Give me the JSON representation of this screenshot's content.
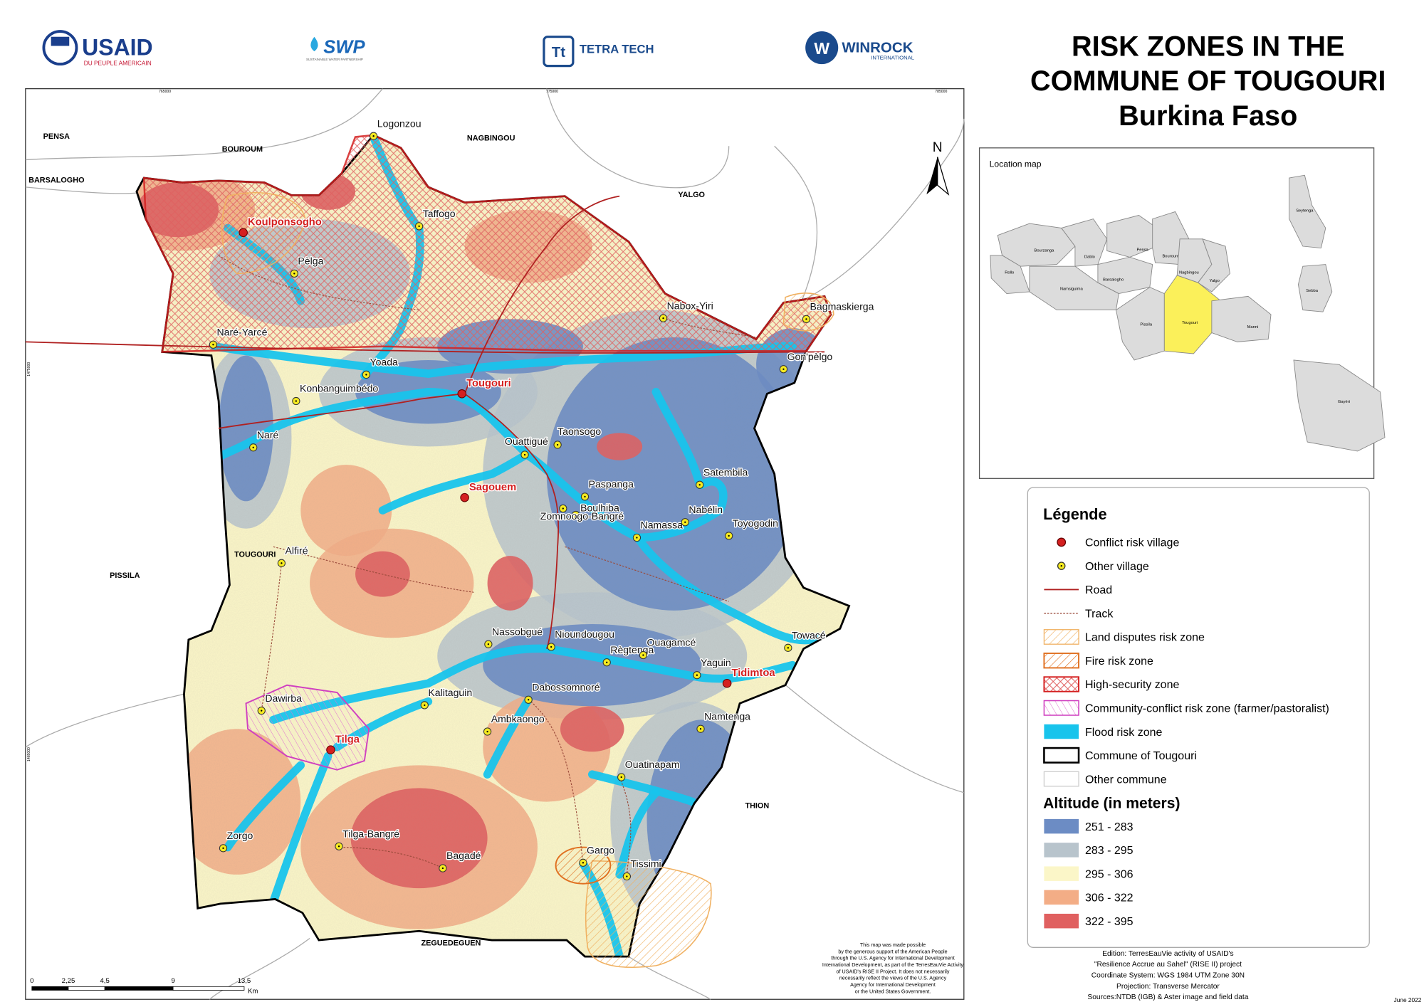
{
  "header": {
    "logos": {
      "usaid": "USAID",
      "usaid_sub": "DU PEUPLE AMERICAIN",
      "swp": "SWP",
      "swp_sub": "SUSTAINABLE WATER PARTNERSHIP",
      "tetra": "TETRA TECH",
      "winrock": "WINROCK",
      "winrock_sub": "INTERNATIONAL"
    },
    "title": [
      "RISK ZONES IN THE",
      "COMMUNE OF TOUGOURI",
      "Burkina Faso"
    ]
  },
  "map": {
    "north": "N",
    "frame_ticks": [
      "765000",
      "775000",
      "785000",
      "1475000",
      "1465000"
    ],
    "neighbors": [
      "PENSA",
      "BOUROUM",
      "NAGBINGOU",
      "BARSALOGHO",
      "YALGO",
      "TOUGOURI",
      "PISSILA",
      "THION",
      "ZEGUEDEGUEN"
    ],
    "conflict_villages": [
      "Koulponsogho",
      "Tougouri",
      "Sagouem",
      "Tidimtoa",
      "Tilga"
    ],
    "other_villages": [
      "Logonzou",
      "Taffogo",
      "Pèlga",
      "Naré-Yarcé",
      "Yoada",
      "Konbanguimbédo",
      "Naré",
      "Nabox-Yiri",
      "Bagmaskierga",
      "Gon'pèlgo",
      "Taonsogo",
      "Ouattigué",
      "Paspanga",
      "Boulhiba",
      "Zomnoogo-Bangré",
      "Namassa",
      "Nabélin",
      "Satembila",
      "Toyogodin",
      "Alfiré",
      "Nassobgué",
      "Nioundougou",
      "Règtenga",
      "Ouagamcé",
      "Towacé",
      "Yaguin",
      "Dabossomnoré",
      "Kalitaguin",
      "Dawirba",
      "Ambkaongo",
      "Namtenga",
      "Ouatinapam",
      "Zorgo",
      "Tilga-Bangré",
      "Bagadé",
      "Gargo",
      "Tissimi"
    ],
    "scale": {
      "labels": [
        "0",
        "2,25",
        "4,5",
        "9",
        "13,5"
      ],
      "unit": "Km"
    }
  },
  "location_map": {
    "title": "Location map",
    "communes": [
      "Seytenga",
      "Bourzanga",
      "Dablo",
      "Pensa",
      "Bourourn",
      "Rollo",
      "Barsalogho",
      "Nagbingou",
      "Yalgo",
      "Namsiguima",
      "Pissila",
      "Tougouri",
      "Manni",
      "Sebba",
      "Gayéri"
    ]
  },
  "legend": {
    "title": "Légende",
    "items": [
      "Conflict risk village",
      "Other village",
      "Road",
      "Track",
      "Land disputes risk zone",
      "Fire risk zone",
      "High-security zone",
      "Community-conflict risk zone (farmer/pastoralist)",
      "Flood risk zone",
      "Commune of Tougouri",
      "Other commune"
    ],
    "altitude_title": "Altitude (in meters)",
    "altitude_classes": [
      {
        "label": "251 - 283",
        "color": "#6c8cc4"
      },
      {
        "label": "283 - 295",
        "color": "#b8c4cc"
      },
      {
        "label": "295 - 306",
        "color": "#fbf6c8"
      },
      {
        "label": "306 - 322",
        "color": "#f3ad86"
      },
      {
        "label": "322 - 395",
        "color": "#e06060"
      }
    ]
  },
  "credits": {
    "support": [
      "This map was made possible",
      "by the generous support of the American People",
      "through the U.S. Agency for International Development",
      "International Development, as part of the TerresEauVie Activity",
      "of USAID's RISE II Project. It does not necessarily",
      "necessarily reflect the views of the U.S. Agency",
      "Agency for International Development",
      "or the United States Government."
    ],
    "edition": [
      "Edition: TerresEauVie activity of USAID's",
      "\"Resilience Accrue au Sahel\" (RISE II) project",
      "Coordinate System: WGS 1984 UTM Zone 30N",
      "Projection: Transverse Mercator",
      "Sources:NTDB (IGB) & Aster image and field data"
    ],
    "date": "June 2022"
  }
}
